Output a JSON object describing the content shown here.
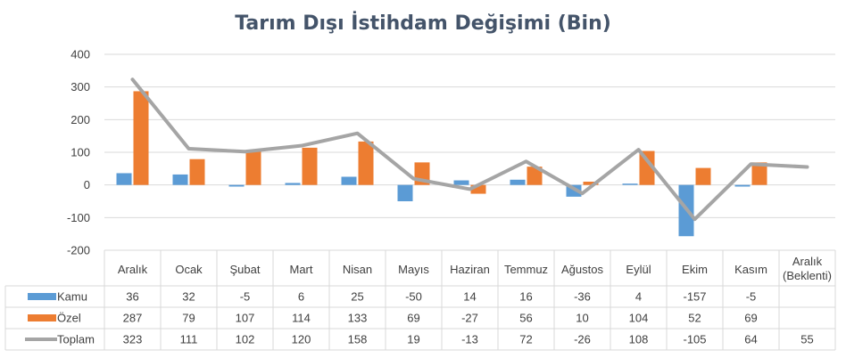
{
  "chart_data": {
    "type": "bar",
    "title": "Tarım Dışı İstihdam Değişimi (Bin)",
    "categories": [
      "Aralık",
      "Ocak",
      "Şubat",
      "Mart",
      "Nisan",
      "Mayıs",
      "Haziran",
      "Temmuz",
      "Ağustos",
      "Eylül",
      "Ekim",
      "Kasım",
      "Aralık (Beklenti)"
    ],
    "category_lines": [
      [
        "Aralık"
      ],
      [
        "Ocak"
      ],
      [
        "Şubat"
      ],
      [
        "Mart"
      ],
      [
        "Nisan"
      ],
      [
        "Mayıs"
      ],
      [
        "Haziran"
      ],
      [
        "Temmuz"
      ],
      [
        "Ağustos"
      ],
      [
        "Eylül"
      ],
      [
        "Ekim"
      ],
      [
        "Kasım"
      ],
      [
        "Aralık",
        "(Beklenti)"
      ]
    ],
    "ylim": [
      -200,
      400
    ],
    "yticks": [
      400,
      300,
      200,
      100,
      0,
      -100,
      -200
    ],
    "grid": true,
    "legend": "data-table",
    "series": [
      {
        "name": "Kamu",
        "type": "bar",
        "color": "#5b9bd5",
        "values": [
          36,
          32,
          -5,
          6,
          25,
          -50,
          14,
          16,
          -36,
          4,
          -157,
          -5,
          null
        ]
      },
      {
        "name": "Özel",
        "type": "bar",
        "color": "#ed7d31",
        "values": [
          287,
          79,
          107,
          114,
          133,
          69,
          -27,
          56,
          10,
          104,
          52,
          69,
          null
        ]
      },
      {
        "name": "Toplam",
        "type": "line",
        "color": "#a5a5a5",
        "values": [
          323,
          111,
          102,
          120,
          158,
          19,
          -13,
          72,
          -26,
          108,
          -105,
          64,
          55
        ]
      }
    ]
  }
}
